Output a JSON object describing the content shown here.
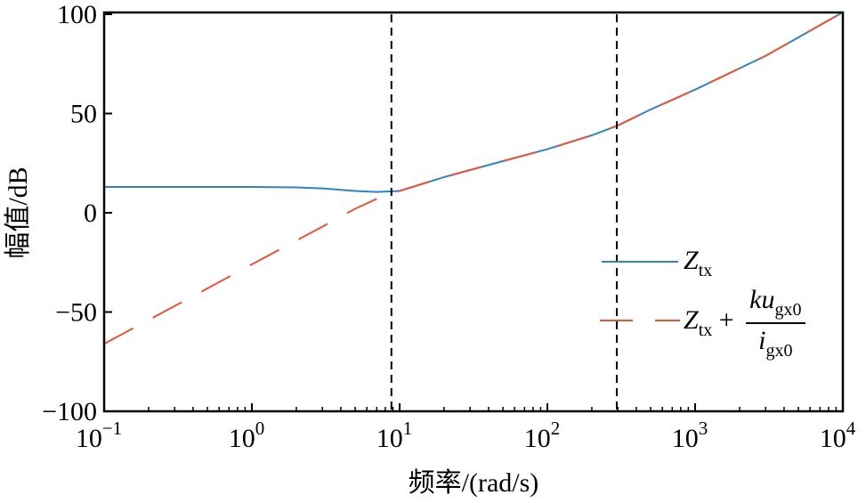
{
  "chart_data": {
    "type": "line",
    "xlabel": "频率/(rad/s)",
    "ylabel": "幅值/dB",
    "xscale": "log",
    "xlim": [
      0.1,
      10000
    ],
    "ylim": [
      -100,
      100
    ],
    "xticks": [
      {
        "base": "10",
        "exp": "−1"
      },
      {
        "base": "10",
        "exp": "0"
      },
      {
        "base": "10",
        "exp": "1"
      },
      {
        "base": "10",
        "exp": "2"
      },
      {
        "base": "10",
        "exp": "3"
      },
      {
        "base": "10",
        "exp": "4"
      }
    ],
    "yticks": [
      "−100",
      "−50",
      "0",
      "50",
      "100"
    ],
    "grid": false,
    "legend_position": "right",
    "vlines": [
      8.8,
      295
    ],
    "series": [
      {
        "name": "Z_tx",
        "color": "#2e86c1",
        "style": "solid",
        "x": [
          0.1,
          1,
          2,
          3,
          5,
          7,
          10,
          20,
          50,
          100,
          200,
          300,
          500,
          1000,
          3000,
          10000
        ],
        "y": [
          13,
          13,
          12.8,
          12.3,
          11,
          10.5,
          11,
          18,
          26,
          32,
          39,
          44,
          52,
          62,
          79,
          101
        ]
      },
      {
        "name": "Z_tx + ku_gx0 / i_gx0",
        "color": "#e8543a",
        "style": "dashed",
        "x": [
          0.1,
          0.3,
          1,
          3,
          5,
          8,
          10,
          20,
          50,
          100,
          200,
          300,
          500,
          1000,
          3000,
          10000
        ],
        "y": [
          -66,
          -47,
          -26,
          -7,
          2,
          9,
          11,
          18,
          26,
          32,
          39,
          44,
          52,
          62,
          79,
          101
        ]
      }
    ],
    "legend": {
      "s1": {
        "main": "Z",
        "sub": "tx"
      },
      "s2": {
        "main": "Z",
        "sub": "tx",
        "plus": "+",
        "num_main": "ku",
        "num_sub": "gx0",
        "den_main": "i",
        "den_sub": "gx0"
      }
    }
  }
}
